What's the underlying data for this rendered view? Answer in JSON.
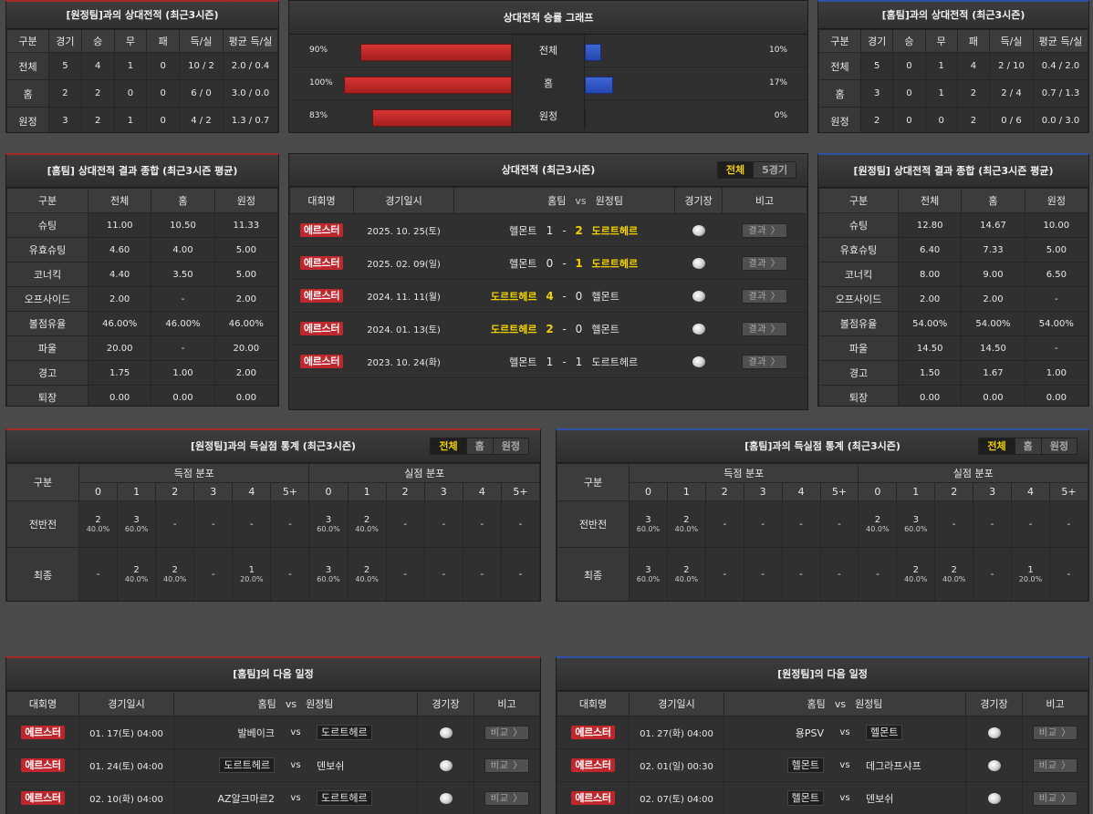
{
  "h2h_away": {
    "title": "[원정팀]과의 상대전적 (최근3시즌)",
    "headers": [
      "구분",
      "경기",
      "승",
      "무",
      "패",
      "득/실",
      "평균 득/실"
    ],
    "rows": [
      [
        "전체",
        "5",
        "4",
        "1",
        "0",
        "10 / 2",
        "2.0 / 0.4"
      ],
      [
        "홈",
        "2",
        "2",
        "0",
        "0",
        "6 / 0",
        "3.0 / 0.0"
      ],
      [
        "원정",
        "3",
        "2",
        "1",
        "0",
        "4 / 2",
        "1.3 / 0.7"
      ]
    ]
  },
  "h2h_home": {
    "title": "[홈팀]과의 상대전적 (최근3시즌)",
    "headers": [
      "구분",
      "경기",
      "승",
      "무",
      "패",
      "득/실",
      "평균 득/실"
    ],
    "rows": [
      [
        "전체",
        "5",
        "0",
        "1",
        "4",
        "2 / 10",
        "0.4 / 2.0"
      ],
      [
        "홈",
        "3",
        "0",
        "1",
        "2",
        "2 / 4",
        "0.7 / 1.3"
      ],
      [
        "원정",
        "2",
        "0",
        "0",
        "2",
        "0 / 6",
        "0.0 / 3.0"
      ]
    ]
  },
  "win_graph": {
    "title": "상대전적 승률 그래프",
    "rows": [
      {
        "label": "전체",
        "left_pct": "90%",
        "right_pct": "10%",
        "left": 90,
        "right": 10
      },
      {
        "label": "홈",
        "left_pct": "100%",
        "right_pct": "17%",
        "left": 100,
        "right": 17
      },
      {
        "label": "원정",
        "left_pct": "83%",
        "right_pct": "0%",
        "left": 83,
        "right": 0
      }
    ]
  },
  "summary_home": {
    "title": "[홈팀] 상대전적 결과 종합 (최근3시즌 평균)",
    "headers": [
      "구분",
      "전체",
      "홈",
      "원정"
    ],
    "rows": [
      [
        "슈팅",
        "11.00",
        "10.50",
        "11.33"
      ],
      [
        "유효슈팅",
        "4.60",
        "4.00",
        "5.00"
      ],
      [
        "코너킥",
        "4.40",
        "3.50",
        "5.00"
      ],
      [
        "오프사이드",
        "2.00",
        "-",
        "2.00"
      ],
      [
        "볼점유율",
        "46.00%",
        "46.00%",
        "46.00%"
      ],
      [
        "파울",
        "20.00",
        "-",
        "20.00"
      ],
      [
        "경고",
        "1.75",
        "1.00",
        "2.00"
      ],
      [
        "퇴장",
        "0.00",
        "0.00",
        "0.00"
      ]
    ]
  },
  "summary_away": {
    "title": "[원정팀] 상대전적 결과 종합 (최근3시즌 평균)",
    "headers": [
      "구분",
      "전체",
      "홈",
      "원정"
    ],
    "rows": [
      [
        "슈팅",
        "12.80",
        "14.67",
        "10.00"
      ],
      [
        "유효슈팅",
        "6.40",
        "7.33",
        "5.00"
      ],
      [
        "코너킥",
        "8.00",
        "9.00",
        "6.50"
      ],
      [
        "오프사이드",
        "2.00",
        "2.00",
        "-"
      ],
      [
        "볼점유율",
        "54.00%",
        "54.00%",
        "54.00%"
      ],
      [
        "파울",
        "14.50",
        "14.50",
        "-"
      ],
      [
        "경고",
        "1.50",
        "1.67",
        "1.00"
      ],
      [
        "퇴장",
        "0.00",
        "0.00",
        "0.00"
      ]
    ]
  },
  "matches": {
    "title": "상대전적 (최근3시즌)",
    "tabs": [
      "전체",
      "5경기"
    ],
    "headers": {
      "league": "대회명",
      "date": "경기일시",
      "home": "홈팀",
      "vs": "vs",
      "away": "원정팀",
      "venue": "경기장",
      "note": "비고"
    },
    "button": "결과 〉",
    "rows": [
      {
        "league": "에르스터",
        "date": "2025. 10. 25(토)",
        "home": "헬몬트",
        "hs": "1",
        "as": "2",
        "away": "도르트헤르",
        "winner": "away"
      },
      {
        "league": "에르스터",
        "date": "2025. 02. 09(일)",
        "home": "헬몬트",
        "hs": "0",
        "as": "1",
        "away": "도르트헤르",
        "winner": "away"
      },
      {
        "league": "에르스터",
        "date": "2024. 11. 11(월)",
        "home": "도르트헤르",
        "hs": "4",
        "as": "0",
        "away": "헬몬트",
        "winner": "home"
      },
      {
        "league": "에르스터",
        "date": "2024. 01. 13(토)",
        "home": "도르트헤르",
        "hs": "2",
        "as": "0",
        "away": "헬몬트",
        "winner": "home"
      },
      {
        "league": "에르스터",
        "date": "2023. 10. 24(화)",
        "home": "헬몬트",
        "hs": "1",
        "as": "1",
        "away": "도르트헤르",
        "winner": "none"
      }
    ]
  },
  "goals_left": {
    "title": "[원정팀]과의 득실점 통계 (최근3시즌)",
    "tabs": [
      "전체",
      "홈",
      "원정"
    ],
    "col_label": "구분",
    "scored": "득점 분포",
    "conceded": "실점 분포",
    "buckets": [
      "0",
      "1",
      "2",
      "3",
      "4",
      "5+"
    ],
    "rows": [
      {
        "label": "전반전",
        "cells": [
          [
            "2",
            "40.0%"
          ],
          [
            "3",
            "60.0%"
          ],
          [
            "-",
            ""
          ],
          [
            "-",
            ""
          ],
          [
            "-",
            ""
          ],
          [
            "-",
            ""
          ],
          [
            "3",
            "60.0%"
          ],
          [
            "2",
            "40.0%"
          ],
          [
            "-",
            ""
          ],
          [
            "-",
            ""
          ],
          [
            "-",
            ""
          ],
          [
            "-",
            ""
          ]
        ]
      },
      {
        "label": "최종",
        "cells": [
          [
            "-",
            ""
          ],
          [
            "2",
            "40.0%"
          ],
          [
            "2",
            "40.0%"
          ],
          [
            "-",
            ""
          ],
          [
            "1",
            "20.0%"
          ],
          [
            "-",
            ""
          ],
          [
            "3",
            "60.0%"
          ],
          [
            "2",
            "40.0%"
          ],
          [
            "-",
            ""
          ],
          [
            "-",
            ""
          ],
          [
            "-",
            ""
          ],
          [
            "-",
            ""
          ]
        ]
      }
    ]
  },
  "goals_right": {
    "title": "[홈팀]과의 득실점 통계 (최근3시즌)",
    "tabs": [
      "전체",
      "홈",
      "원정"
    ],
    "col_label": "구분",
    "scored": "득점 분포",
    "conceded": "실점 분포",
    "buckets": [
      "0",
      "1",
      "2",
      "3",
      "4",
      "5+"
    ],
    "rows": [
      {
        "label": "전반전",
        "cells": [
          [
            "3",
            "60.0%"
          ],
          [
            "2",
            "40.0%"
          ],
          [
            "-",
            ""
          ],
          [
            "-",
            ""
          ],
          [
            "-",
            ""
          ],
          [
            "-",
            ""
          ],
          [
            "2",
            "40.0%"
          ],
          [
            "3",
            "60.0%"
          ],
          [
            "-",
            ""
          ],
          [
            "-",
            ""
          ],
          [
            "-",
            ""
          ],
          [
            "-",
            ""
          ]
        ]
      },
      {
        "label": "최종",
        "cells": [
          [
            "3",
            "60.0%"
          ],
          [
            "2",
            "40.0%"
          ],
          [
            "-",
            ""
          ],
          [
            "-",
            ""
          ],
          [
            "-",
            ""
          ],
          [
            "-",
            ""
          ],
          [
            "-",
            ""
          ],
          [
            "2",
            "40.0%"
          ],
          [
            "2",
            "40.0%"
          ],
          [
            "-",
            ""
          ],
          [
            "1",
            "20.0%"
          ],
          [
            "-",
            ""
          ]
        ]
      }
    ]
  },
  "next_home": {
    "title": "[홈팀]의 다음 일정",
    "headers": {
      "league": "대회명",
      "date": "경기일시",
      "home": "홈팀",
      "vs": "vs",
      "away": "원정팀",
      "venue": "경기장",
      "note": "비고"
    },
    "button": "비교 〉",
    "rows": [
      {
        "league": "에르스터",
        "date": "01. 17(토) 04:00",
        "home": "발베이크",
        "away": "도르트헤르",
        "hl": "away"
      },
      {
        "league": "에르스터",
        "date": "01. 24(토) 04:00",
        "home": "도르트헤르",
        "away": "덴보쉬",
        "hl": "home"
      },
      {
        "league": "에르스터",
        "date": "02. 10(화) 04:00",
        "home": "AZ알크마르2",
        "away": "도르트헤르",
        "hl": "away"
      }
    ]
  },
  "next_away": {
    "title": "[원정팀]의 다음 일정",
    "headers": {
      "league": "대회명",
      "date": "경기일시",
      "home": "홈팀",
      "vs": "vs",
      "away": "원정팀",
      "venue": "경기장",
      "note": "비고"
    },
    "button": "비교 〉",
    "rows": [
      {
        "league": "에르스터",
        "date": "01. 27(화) 04:00",
        "home": "용PSV",
        "away": "헬몬트",
        "hl": "away"
      },
      {
        "league": "에르스터",
        "date": "02. 01(일) 00:30",
        "home": "헬몬트",
        "away": "데그라프샤프",
        "hl": "home"
      },
      {
        "league": "에르스터",
        "date": "02. 07(토) 04:00",
        "home": "헬몬트",
        "away": "덴보쉬",
        "hl": "home"
      }
    ]
  },
  "colors": {
    "accent": "#f2d100",
    "badge": "#c0272d",
    "bar_left": "#c62828",
    "bar_right": "#2f55c8"
  }
}
